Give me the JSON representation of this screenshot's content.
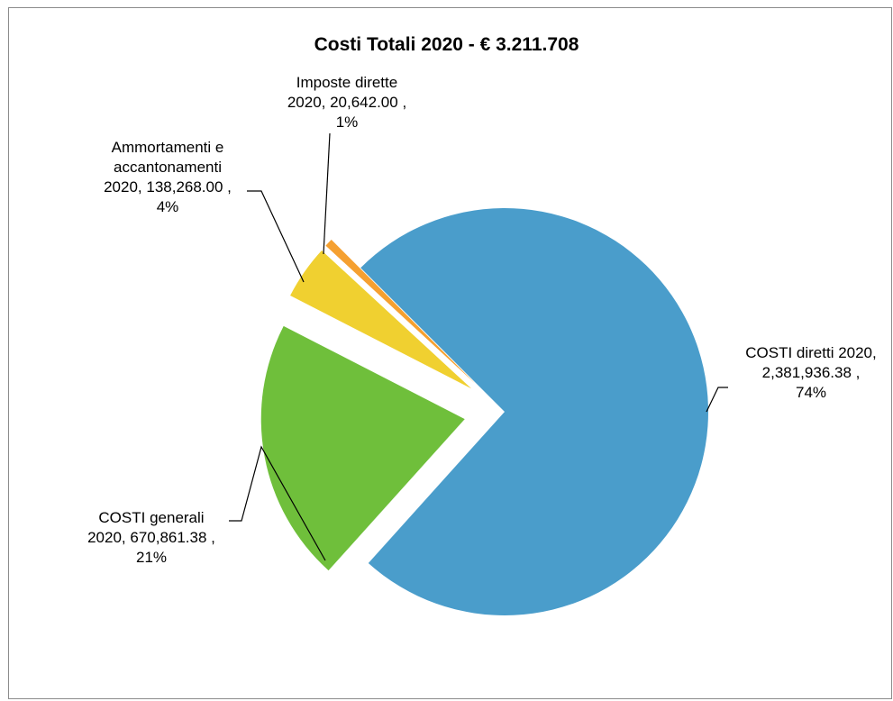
{
  "chart_data": {
    "type": "pie",
    "title": "Costi Totali 2020 -  € 3.211.708",
    "slices": [
      {
        "name": "COSTI diretti 2020",
        "value": 2381936.38,
        "value_label": "2,381,936.38",
        "percent_label": "74%",
        "color": "#4a9dcb"
      },
      {
        "name": "COSTI generali 2020",
        "value": 670861.38,
        "value_label": "670,861.38",
        "percent_label": "21%",
        "color": "#6fbf3b"
      },
      {
        "name": "Ammortamenti e accantonamenti 2020",
        "value": 138268.0,
        "value_label": "138,268.00",
        "percent_label": "4%",
        "color": "#f0d030"
      },
      {
        "name": "Imposte dirette 2020",
        "value": 20642.0,
        "value_label": "20,642.00",
        "percent_label": "1%",
        "color": "#f5a030"
      }
    ],
    "labels": [
      {
        "lines": [
          "COSTI diretti 2020,",
          "2,381,936.38 ,",
          "74%"
        ]
      },
      {
        "lines": [
          "COSTI generali",
          "2020, 670,861.38 ,",
          "21%"
        ]
      },
      {
        "lines": [
          "Ammortamenti e",
          "accantonamenti",
          "2020, 138,268.00 ,",
          "4%"
        ]
      },
      {
        "lines": [
          "Imposte dirette",
          "2020, 20,642.00 ,",
          "1%"
        ]
      }
    ],
    "legend": "none"
  }
}
